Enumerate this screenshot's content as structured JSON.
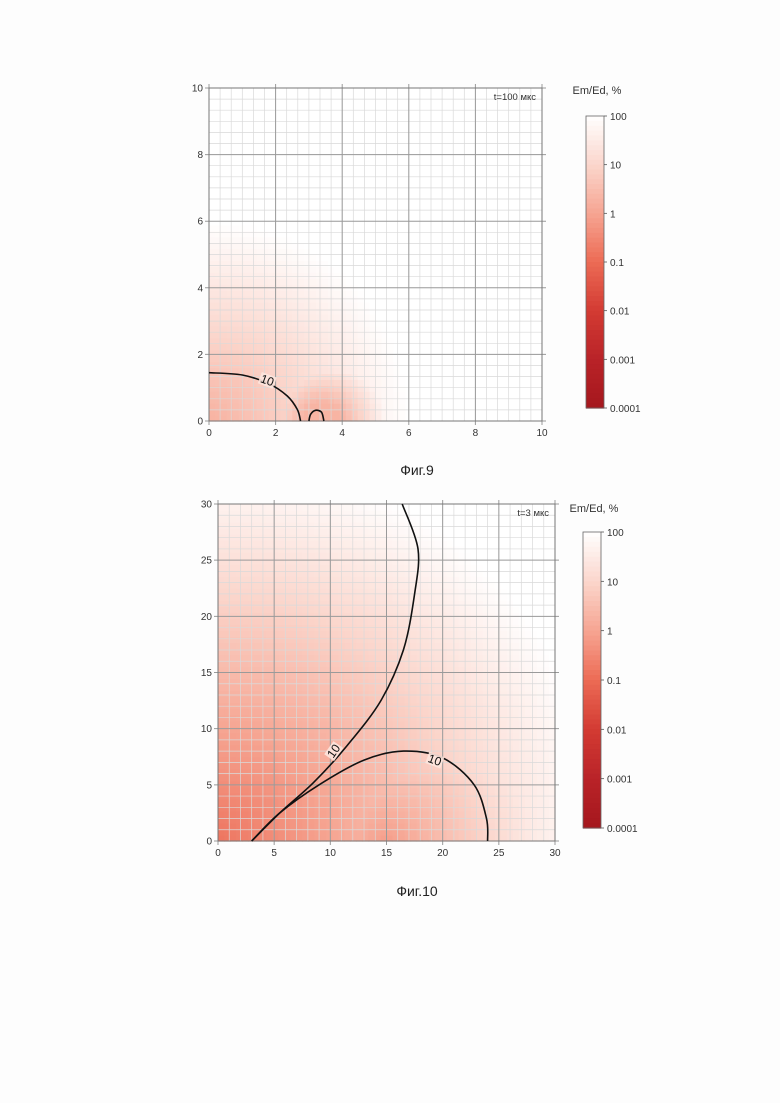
{
  "colors": {
    "colormap_stops": [
      "#a5171d",
      "#b92328",
      "#d33b33",
      "#ec6b55",
      "#f6a592",
      "#fbd6cc",
      "#ffffff"
    ],
    "grid_major": "#9a9a9a",
    "grid_minor": "#d9d9d9",
    "contour": "#111111"
  },
  "colorbar": {
    "title": "Em/Ed, %",
    "scale": "log",
    "ticks": [
      {
        "value": 100,
        "label": "100"
      },
      {
        "value": 10,
        "label": "10"
      },
      {
        "value": 1,
        "label": "1"
      },
      {
        "value": 0.1,
        "label": "0.1"
      },
      {
        "value": 0.01,
        "label": "0.01"
      },
      {
        "value": 0.001,
        "label": "0.001"
      },
      {
        "value": 0.0001,
        "label": "0.0001"
      }
    ]
  },
  "chart_data": [
    {
      "type": "heatmap",
      "caption": "Фиг.9",
      "annotation": "t=100 мкс",
      "xlim": [
        0,
        10
      ],
      "ylim": [
        0,
        10
      ],
      "xticks": [
        "0",
        "2",
        "4",
        "6",
        "8",
        "10"
      ],
      "yticks": [
        "0",
        "2",
        "4",
        "6",
        "8",
        "10"
      ],
      "grid": true,
      "contour_label": "10",
      "contour_level": 10,
      "contour_lines": [
        [
          [
            0,
            1.45
          ],
          [
            1,
            1.38
          ],
          [
            1.8,
            1.12
          ],
          [
            2.35,
            0.75
          ],
          [
            2.65,
            0.35
          ],
          [
            2.75,
            0
          ]
        ],
        [
          [
            3.0,
            0
          ],
          [
            3.05,
            0.2
          ],
          [
            3.2,
            0.32
          ],
          [
            3.38,
            0.26
          ],
          [
            3.45,
            0
          ]
        ]
      ],
      "field": {
        "lobes": [
          {
            "center": [
              0,
              0
            ],
            "radius_10pct": 2.6,
            "radius_100pct": 6.0
          },
          {
            "center": [
              3.4,
              0
            ],
            "radius_10pct": 1.2,
            "radius_100pct": 2.1
          }
        ],
        "min_value": 2
      }
    },
    {
      "type": "heatmap",
      "caption": "Фиг.10",
      "annotation": "t=3 мкс",
      "xlim": [
        0,
        30
      ],
      "ylim": [
        0,
        30
      ],
      "xticks": [
        "0",
        "5",
        "10",
        "15",
        "20",
        "25",
        "30"
      ],
      "yticks": [
        "0",
        "5",
        "10",
        "15",
        "20",
        "25",
        "30"
      ],
      "grid": true,
      "contour_label": "10",
      "contour_level": 10,
      "contour_lines": [
        [
          [
            3,
            0
          ],
          [
            5.5,
            2.5
          ],
          [
            8.5,
            5.2
          ],
          [
            11.5,
            8.5
          ],
          [
            14.5,
            12.5
          ],
          [
            16.5,
            17
          ],
          [
            17.5,
            22
          ],
          [
            17.8,
            26
          ],
          [
            16.4,
            30
          ]
        ],
        [
          [
            3,
            0
          ],
          [
            5.5,
            2.5
          ],
          [
            9,
            5
          ],
          [
            13,
            7.2
          ],
          [
            16.5,
            8
          ],
          [
            20,
            7.4
          ],
          [
            22.8,
            5
          ],
          [
            23.9,
            2
          ],
          [
            24,
            0
          ]
        ]
      ],
      "field": {
        "lobes": [
          {
            "center": [
              0,
              0
            ],
            "radius_10pct": 22,
            "radius_100pct": 34
          },
          {
            "center": [
              15,
              0
            ],
            "radius_10pct": 9,
            "radius_100pct": 17
          }
        ],
        "min_value": 0.0001
      }
    }
  ]
}
